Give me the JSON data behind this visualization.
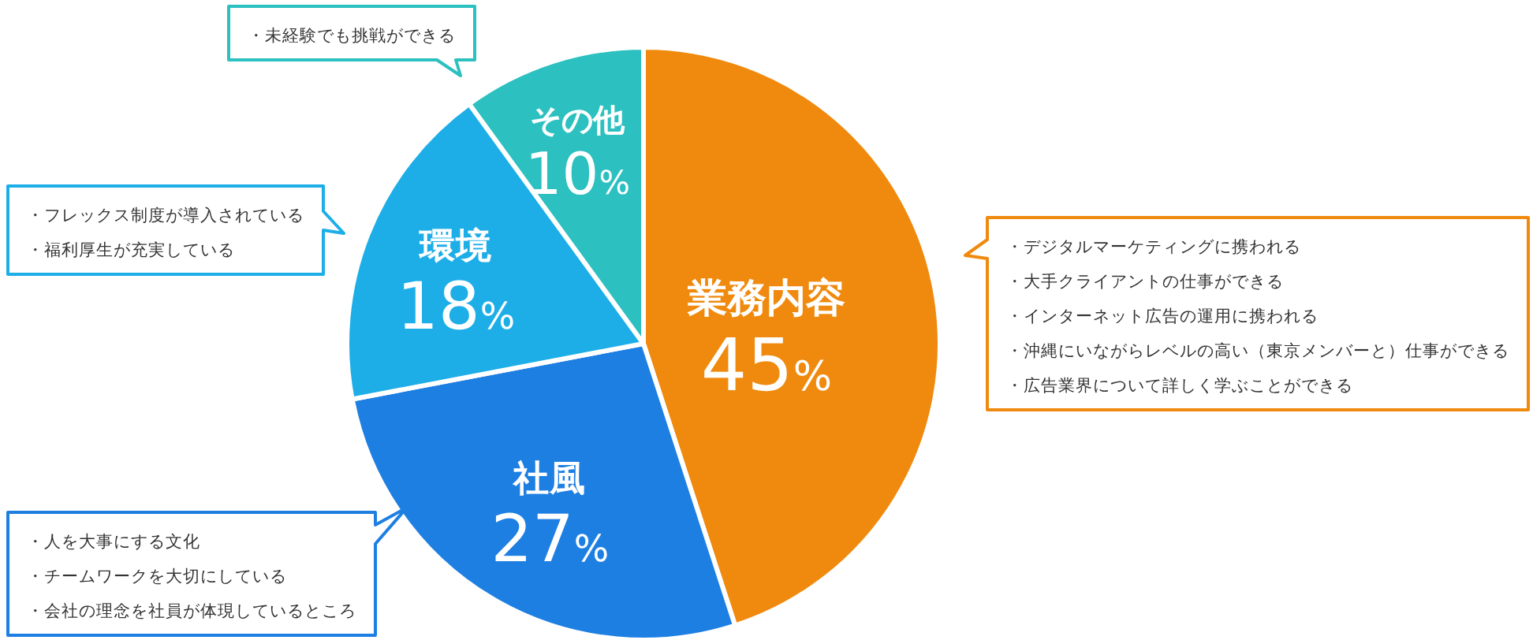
{
  "chart_data": {
    "type": "pie",
    "categories": [
      "業務内容",
      "社風",
      "環境",
      "その他"
    ],
    "values": [
      45,
      27,
      18,
      10
    ],
    "colors": [
      "#f08a0e",
      "#1e7fe3",
      "#1daee8",
      "#2cc0c0"
    ],
    "value_labels": [
      "45%",
      "27%",
      "18%",
      "10%"
    ],
    "annotations": [
      "・デジタルマーケティングに携われる",
      "・大手クライアントの仕事ができる",
      "・インターネット広告の運用に携われる",
      "・沖縄にいながらレベルの高い（東京メンバーと）仕事ができる",
      "・広告業界について詳しく学ぶことができる",
      "・人を大事にする文化",
      "・チームワークを大切にしている",
      "・会社の理念を社員が体現しているところ",
      "・フレックス制度が導入されている",
      "・福利厚生が充実している",
      "・未経験でも挑戦ができる"
    ]
  }
}
